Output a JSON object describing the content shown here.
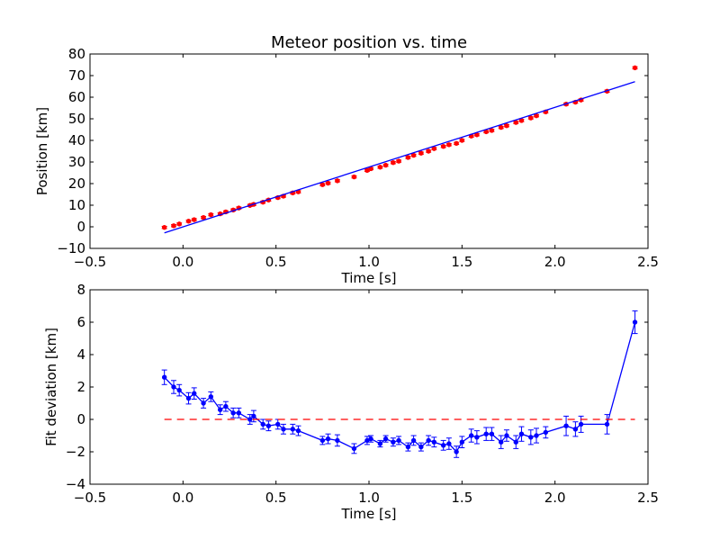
{
  "chart_data": [
    {
      "type": "scatter",
      "title": "Meteor position vs. time",
      "xlabel": "Time [s]",
      "ylabel": "Position [km]",
      "xlim": [
        -0.5,
        2.5
      ],
      "ylim": [
        -10,
        80
      ],
      "xticks": [
        "−0.5",
        "0.0",
        "0.5",
        "1.0",
        "1.5",
        "2.0",
        "2.5"
      ],
      "xtick_values": [
        -0.5,
        0.0,
        0.5,
        1.0,
        1.5,
        2.0,
        2.5
      ],
      "yticks": [
        "−10",
        "0",
        "10",
        "20",
        "30",
        "40",
        "50",
        "60",
        "70",
        "80"
      ],
      "ytick_values": [
        -10,
        0,
        10,
        20,
        30,
        40,
        50,
        60,
        70,
        80
      ],
      "grid": false,
      "series": [
        {
          "kind": "errorbar-points",
          "color": "#ff0000",
          "x": [
            -0.1,
            -0.05,
            -0.02,
            0.03,
            0.06,
            0.11,
            0.15,
            0.2,
            0.23,
            0.27,
            0.3,
            0.36,
            0.38,
            0.43,
            0.46,
            0.51,
            0.54,
            0.59,
            0.62,
            0.75,
            0.78,
            0.83,
            0.92,
            0.99,
            1.01,
            1.06,
            1.09,
            1.13,
            1.16,
            1.21,
            1.24,
            1.28,
            1.32,
            1.35,
            1.4,
            1.43,
            1.47,
            1.5,
            1.55,
            1.58,
            1.63,
            1.66,
            1.71,
            1.74,
            1.79,
            1.82,
            1.87,
            1.9,
            1.95,
            2.06,
            2.11,
            2.14,
            2.28,
            2.43
          ],
          "y": [
            -0.3,
            0.5,
            1.3,
            2.6,
            3.3,
            4.3,
            5.6,
            6.0,
            6.9,
            7.8,
            8.7,
            9.9,
            10.4,
            11.4,
            12.4,
            13.5,
            14.2,
            15.7,
            16.2,
            19.5,
            20.2,
            21.3,
            23.1,
            26.1,
            26.9,
            27.6,
            28.5,
            29.7,
            30.4,
            32.1,
            33.1,
            34.1,
            35.0,
            36.2,
            37.2,
            38.0,
            38.6,
            40.0,
            42.0,
            42.6,
            44.0,
            44.6,
            46.0,
            46.8,
            48.3,
            49.2,
            50.4,
            51.4,
            53.2,
            56.8,
            57.7,
            58.7,
            62.8,
            73.6
          ],
          "yerr": 0.5
        },
        {
          "kind": "fit-line",
          "color": "#0000ff",
          "x": [
            -0.1,
            2.43
          ],
          "y": [
            -2.8,
            67.2
          ]
        }
      ]
    },
    {
      "type": "line",
      "title": "",
      "xlabel": "Time [s]",
      "ylabel": "Fit deviation [km]",
      "xlim": [
        -0.5,
        2.5
      ],
      "ylim": [
        -4,
        8
      ],
      "xticks": [
        "−0.5",
        "0.0",
        "0.5",
        "1.0",
        "1.5",
        "2.0",
        "2.5"
      ],
      "xtick_values": [
        -0.5,
        0.0,
        0.5,
        1.0,
        1.5,
        2.0,
        2.5
      ],
      "yticks": [
        "−4",
        "−2",
        "0",
        "2",
        "4",
        "6",
        "8"
      ],
      "ytick_values": [
        -4,
        -2,
        0,
        2,
        4,
        6,
        8
      ],
      "grid": false,
      "series": [
        {
          "kind": "errorbar-line",
          "color": "#0000ff",
          "x": [
            -0.1,
            -0.05,
            -0.02,
            0.03,
            0.06,
            0.11,
            0.15,
            0.2,
            0.23,
            0.27,
            0.3,
            0.36,
            0.38,
            0.43,
            0.46,
            0.51,
            0.54,
            0.59,
            0.62,
            0.75,
            0.78,
            0.83,
            0.92,
            0.99,
            1.01,
            1.06,
            1.09,
            1.13,
            1.16,
            1.21,
            1.24,
            1.28,
            1.32,
            1.35,
            1.4,
            1.43,
            1.47,
            1.5,
            1.55,
            1.58,
            1.63,
            1.66,
            1.71,
            1.74,
            1.79,
            1.82,
            1.87,
            1.9,
            1.95,
            2.06,
            2.11,
            2.14,
            2.28,
            2.43
          ],
          "y": [
            2.6,
            2.0,
            1.8,
            1.3,
            1.6,
            1.0,
            1.4,
            0.6,
            0.8,
            0.4,
            0.4,
            0.0,
            0.2,
            -0.3,
            -0.4,
            -0.3,
            -0.6,
            -0.6,
            -0.7,
            -1.3,
            -1.2,
            -1.3,
            -1.8,
            -1.3,
            -1.2,
            -1.5,
            -1.2,
            -1.4,
            -1.3,
            -1.7,
            -1.3,
            -1.7,
            -1.3,
            -1.4,
            -1.6,
            -1.5,
            -2.0,
            -1.4,
            -1.0,
            -1.1,
            -0.9,
            -0.9,
            -1.4,
            -1.0,
            -1.4,
            -0.9,
            -1.1,
            -1.0,
            -0.8,
            -0.4,
            -0.6,
            -0.3,
            -0.3,
            6.0
          ],
          "yerr": [
            0.45,
            0.4,
            0.35,
            0.35,
            0.35,
            0.3,
            0.3,
            0.3,
            0.3,
            0.3,
            0.3,
            0.3,
            0.35,
            0.3,
            0.3,
            0.3,
            0.3,
            0.3,
            0.3,
            0.25,
            0.3,
            0.35,
            0.3,
            0.25,
            0.2,
            0.2,
            0.2,
            0.25,
            0.25,
            0.25,
            0.3,
            0.25,
            0.3,
            0.3,
            0.3,
            0.35,
            0.35,
            0.35,
            0.4,
            0.4,
            0.4,
            0.4,
            0.4,
            0.35,
            0.4,
            0.45,
            0.45,
            0.45,
            0.35,
            0.6,
            0.45,
            0.5,
            0.6,
            0.7
          ]
        },
        {
          "kind": "reference-line",
          "color": "#ff0000",
          "dashed": true,
          "x": [
            -0.1,
            2.43
          ],
          "y": [
            0,
            0
          ]
        }
      ]
    }
  ]
}
